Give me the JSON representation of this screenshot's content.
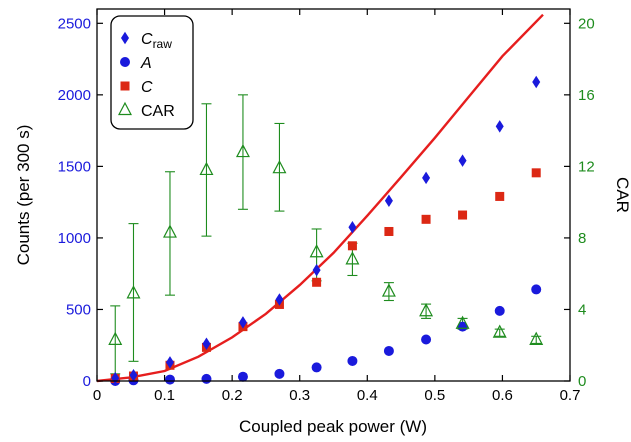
{
  "chart_data": {
    "type": "scatter",
    "xlabel": "Coupled peak power (W)",
    "ylabel_left": "Counts (per 300 s)",
    "ylabel_right": "CAR",
    "xlim": [
      0,
      0.7
    ],
    "ylim_left": [
      0,
      2600
    ],
    "ylim_right": [
      0,
      20.8
    ],
    "x_ticks": [
      "0",
      "0.1",
      "0.2",
      "0.3",
      "0.4",
      "0.5",
      "0.6",
      "0.7"
    ],
    "y_ticks_left": [
      "0",
      "500",
      "1000",
      "1500",
      "2000",
      "2500"
    ],
    "y_ticks_right": [
      "0",
      "4",
      "8",
      "12",
      "16",
      "20"
    ],
    "grid": false,
    "legend_position": "top-left",
    "colors": {
      "c_raw": "#1a1adc",
      "a": "#1a1adc",
      "c": "#dc2814",
      "car": "#1e8c1e",
      "fit": "#e61e1e",
      "left_axis": "#1a1adc",
      "right_axis": "#1e8c1e"
    },
    "series": [
      {
        "name": "C_raw",
        "legend_main": "C",
        "legend_sub": "raw",
        "marker": "diamond",
        "axis": "left",
        "x": [
          0.027,
          0.054,
          0.108,
          0.162,
          0.216,
          0.27,
          0.325,
          0.378,
          0.432,
          0.487,
          0.541,
          0.596,
          0.65
        ],
        "y": [
          20,
          40,
          130,
          260,
          410,
          570,
          775,
          1075,
          1260,
          1420,
          1540,
          1780,
          2090
        ]
      },
      {
        "name": "A",
        "legend_main": "A",
        "legend_sub": "",
        "marker": "circle",
        "axis": "left",
        "x": [
          0.027,
          0.054,
          0.108,
          0.162,
          0.216,
          0.27,
          0.325,
          0.378,
          0.432,
          0.487,
          0.541,
          0.596,
          0.65
        ],
        "y": [
          0,
          5,
          10,
          15,
          30,
          50,
          95,
          140,
          210,
          290,
          380,
          490,
          640
        ]
      },
      {
        "name": "C",
        "legend_main": "C",
        "legend_sub": "",
        "marker": "square",
        "axis": "left",
        "x": [
          0.027,
          0.054,
          0.108,
          0.162,
          0.216,
          0.27,
          0.325,
          0.378,
          0.432,
          0.487,
          0.541,
          0.596,
          0.65
        ],
        "y": [
          18,
          35,
          110,
          235,
          380,
          535,
          690,
          945,
          1045,
          1130,
          1160,
          1290,
          1455
        ]
      },
      {
        "name": "CAR",
        "legend_main": "CAR",
        "legend_sub": "",
        "marker": "triangle",
        "axis": "right",
        "x": [
          0.027,
          0.054,
          0.108,
          0.162,
          0.216,
          0.27,
          0.325,
          0.378,
          0.432,
          0.487,
          0.541,
          0.596,
          0.65
        ],
        "y": [
          2.3,
          4.9,
          8.3,
          11.8,
          12.8,
          11.9,
          7.2,
          6.8,
          5.0,
          3.9,
          3.2,
          2.7,
          2.3
        ],
        "err_low": [
          1.9,
          3.8,
          3.5,
          3.7,
          3.2,
          2.4,
          1.6,
          0.9,
          0.5,
          0.4,
          0.3,
          0.2,
          0.2
        ],
        "err_high": [
          1.9,
          3.9,
          3.4,
          3.7,
          3.2,
          2.5,
          1.3,
          0.9,
          0.5,
          0.4,
          0.3,
          0.2,
          0.2
        ]
      }
    ],
    "fit_curve": {
      "axis": "left",
      "x": [
        0,
        0.05,
        0.1,
        0.15,
        0.2,
        0.25,
        0.3,
        0.35,
        0.4,
        0.45,
        0.5,
        0.55,
        0.6,
        0.66
      ],
      "y": [
        0,
        25,
        70,
        170,
        305,
        470,
        670,
        895,
        1155,
        1425,
        1700,
        1985,
        2270,
        2560
      ]
    }
  }
}
